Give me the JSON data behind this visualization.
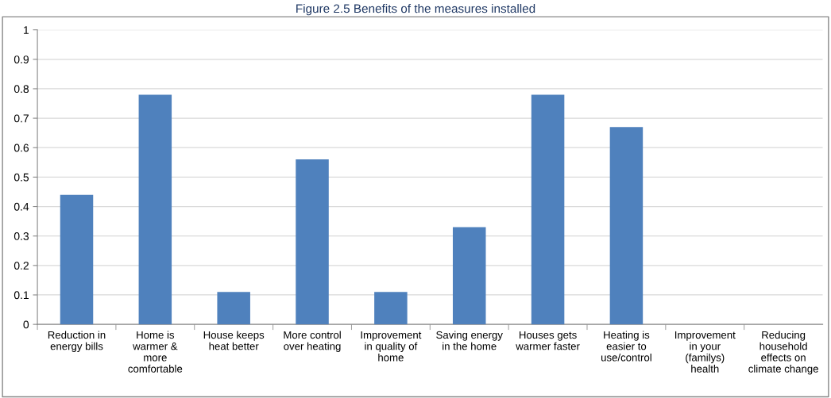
{
  "chart_data": {
    "type": "bar",
    "title": "Figure 2.5 Benefits of the measures installed",
    "categories": [
      "Reduction in\nenergy bills",
      "Home is\nwarmer &\nmore\ncomfortable",
      "House keeps\nheat better",
      "More control\nover heating",
      "Improvement\nin quality of\nhome",
      "Saving energy\nin the home",
      "Houses gets\nwarmer faster",
      "Heating is\neasier to\nuse/control",
      "Improvement\nin your\n(familys)\nhealth",
      "Reducing\nhousehold\neffects on\nclimate change"
    ],
    "values": [
      0.44,
      0.78,
      0.11,
      0.56,
      0.11,
      0.33,
      0.78,
      0.67,
      0,
      0
    ],
    "color": "#4f81bd",
    "ylim": [
      0,
      1
    ],
    "yticks": [
      0,
      {
        "value": 0.1,
        "label": "0.1"
      },
      {
        "value": 0.2,
        "label": "0.2"
      },
      {
        "value": 0.3,
        "label": "0.3"
      },
      {
        "value": 0.4,
        "label": "0.4"
      },
      {
        "value": 0.5,
        "label": "0.5"
      },
      {
        "value": 0.6,
        "label": "0.6"
      },
      {
        "value": 0.7,
        "label": "0.7"
      },
      {
        "value": 0.8,
        "label": "0.8"
      },
      {
        "value": 0.9,
        "label": "0.9"
      },
      1
    ],
    "grid": "y"
  }
}
